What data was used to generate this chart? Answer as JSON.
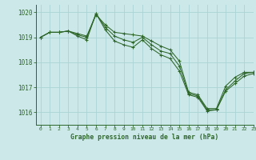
{
  "title": "Graphe pression niveau de la mer (hPa)",
  "bg_color": "#cce8e8",
  "grid_color": "#aad4d4",
  "line_color": "#2d6629",
  "xlim": [
    -0.5,
    23
  ],
  "ylim": [
    1015.5,
    1020.3
  ],
  "yticks": [
    1016,
    1017,
    1018,
    1019,
    1020
  ],
  "xticks": [
    0,
    1,
    2,
    3,
    4,
    5,
    6,
    7,
    8,
    9,
    10,
    11,
    12,
    13,
    14,
    15,
    16,
    17,
    18,
    19,
    20,
    21,
    22,
    23
  ],
  "series": [
    [
      1019.0,
      1019.2,
      1019.2,
      1019.25,
      1019.15,
      1019.05,
      1019.9,
      1019.5,
      1019.2,
      1019.15,
      1019.1,
      1019.05,
      1018.85,
      1018.65,
      1018.5,
      1018.05,
      1016.8,
      1016.7,
      1016.15,
      1016.15,
      1017.05,
      1017.4,
      1017.6,
      1017.6
    ],
    [
      1019.0,
      1019.2,
      1019.2,
      1019.25,
      1019.1,
      1019.0,
      1019.95,
      1019.4,
      1019.05,
      1018.9,
      1018.8,
      1019.0,
      1018.7,
      1018.45,
      1018.35,
      1017.85,
      1016.75,
      1016.65,
      1016.1,
      1016.1,
      1016.9,
      1017.25,
      1017.55,
      1017.6
    ],
    [
      1019.0,
      1019.2,
      1019.2,
      1019.25,
      1019.05,
      1018.9,
      1019.95,
      1019.3,
      1018.85,
      1018.7,
      1018.6,
      1018.9,
      1018.55,
      1018.3,
      1018.15,
      1017.65,
      1016.7,
      1016.6,
      1016.05,
      1016.1,
      1016.85,
      1017.15,
      1017.45,
      1017.55
    ]
  ]
}
